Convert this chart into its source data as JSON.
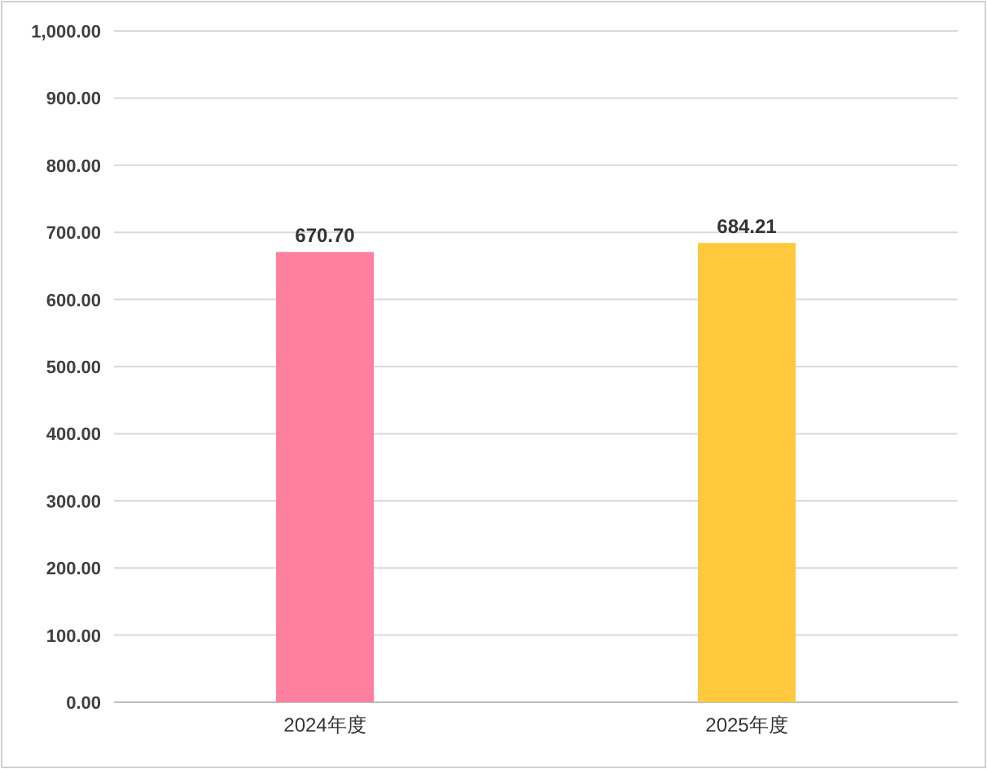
{
  "chart_data": {
    "type": "bar",
    "categories": [
      "2024年度",
      "2025年度"
    ],
    "values": [
      670.7,
      684.21
    ],
    "colors": [
      "#ff7f9e",
      "#ffc83d"
    ],
    "value_labels": [
      "670.70",
      "684.21"
    ],
    "ylim": [
      0,
      1000
    ],
    "yticks": [
      {
        "value": 0,
        "label": "0.00"
      },
      {
        "value": 100,
        "label": "100.00"
      },
      {
        "value": 200,
        "label": "200.00"
      },
      {
        "value": 300,
        "label": "300.00"
      },
      {
        "value": 400,
        "label": "400.00"
      },
      {
        "value": 500,
        "label": "500.00"
      },
      {
        "value": 600,
        "label": "600.00"
      },
      {
        "value": 700,
        "label": "700.00"
      },
      {
        "value": 800,
        "label": "800.00"
      },
      {
        "value": 900,
        "label": "900.00"
      },
      {
        "value": 1000,
        "label": "1,000.00"
      }
    ],
    "grid": "y"
  }
}
